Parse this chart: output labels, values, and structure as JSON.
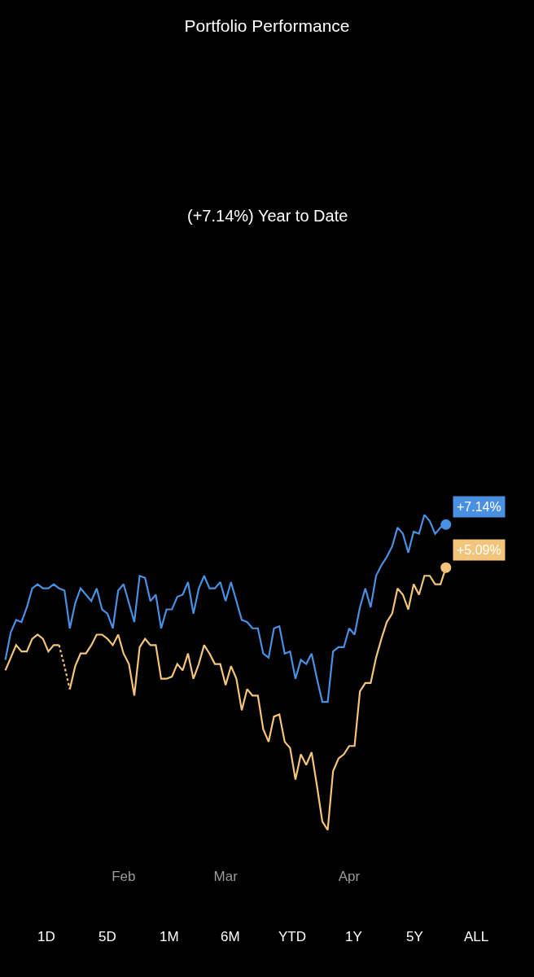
{
  "chart_data": {
    "type": "line",
    "title": "Portfolio Performance",
    "subtitle": "(+7.14%) Year to Date",
    "tick_labels": "x",
    "categories": [
      null,
      null,
      null,
      null,
      null,
      null,
      null,
      null,
      null,
      null,
      null,
      null,
      null,
      null,
      null,
      null,
      null,
      null,
      null,
      null,
      null,
      null,
      "Feb",
      null,
      null,
      null,
      null,
      null,
      null,
      null,
      null,
      null,
      null,
      null,
      null,
      null,
      null,
      null,
      null,
      null,
      null,
      "Mar",
      null,
      null,
      null,
      null,
      null,
      null,
      null,
      null,
      null,
      null,
      null,
      null,
      null,
      null,
      null,
      null,
      null,
      null,
      null,
      null,
      null,
      null,
      "Apr",
      null,
      null,
      null,
      null,
      null,
      null,
      null,
      null,
      null,
      null,
      null,
      null,
      null,
      null,
      null,
      null,
      null,
      null
    ],
    "grid": false,
    "marker": "none",
    "line_style": "solid",
    "series": [
      {
        "color": "#4a90e2",
        "values": [
          0.7,
          2.0,
          2.6,
          2.5,
          3.2,
          4.1,
          4.3,
          4.1,
          4.1,
          4.3,
          4.1,
          4.0,
          2.2,
          3.4,
          4.1,
          3.8,
          3.5,
          4.1,
          3.1,
          2.9,
          2.2,
          4.0,
          4.3,
          3.4,
          2.5,
          4.7,
          4.6,
          3.5,
          3.8,
          2.2,
          3.1,
          3.1,
          3.7,
          3.8,
          4.4,
          2.9,
          4.1,
          4.7,
          4.1,
          4.1,
          4.4,
          3.5,
          4.4,
          3.5,
          2.6,
          2.5,
          2.2,
          2.2,
          1.0,
          0.8,
          2.2,
          2.3,
          1.0,
          1.1,
          -0.2,
          0.7,
          0.5,
          1.0,
          -0.2,
          -1.3,
          -1.3,
          1.1,
          1.3,
          1.3,
          2.2,
          1.9,
          3.2,
          4.1,
          3.2,
          4.7,
          5.2,
          5.6,
          6.1,
          7.0,
          6.7,
          5.8,
          6.8,
          6.7,
          7.6,
          7.3,
          6.7,
          7.0,
          7.14
        ],
        "value_labels": [
          null,
          null,
          null,
          null,
          null,
          null,
          null,
          null,
          null,
          null,
          null,
          null,
          null,
          null,
          null,
          null,
          null,
          null,
          null,
          null,
          null,
          null,
          null,
          null,
          null,
          null,
          null,
          null,
          null,
          null,
          null,
          null,
          null,
          null,
          null,
          null,
          null,
          null,
          null,
          null,
          null,
          null,
          null,
          null,
          null,
          null,
          null,
          null,
          null,
          null,
          null,
          null,
          null,
          null,
          null,
          null,
          null,
          null,
          null,
          null,
          null,
          null,
          null,
          null,
          null,
          null,
          null,
          null,
          null,
          null,
          null,
          null,
          null,
          null,
          null,
          null,
          null,
          null,
          null,
          null,
          null,
          null,
          "+7.14%"
        ]
      },
      {
        "color": "#f3c57a",
        "values": [
          0.2,
          0.8,
          1.4,
          1.1,
          1.1,
          1.7,
          1.9,
          1.7,
          1.1,
          1.4,
          1.4,
          null,
          null,
          null,
          null,
          null,
          null,
          null,
          null,
          null,
          null,
          null,
          null,
          null,
          null,
          null,
          null,
          null,
          null,
          null,
          null,
          null,
          null,
          null,
          null,
          null,
          null,
          null,
          null,
          null,
          null,
          null,
          null,
          null,
          null,
          null,
          null,
          null,
          null,
          null,
          null,
          null,
          null,
          null,
          null,
          null,
          null,
          null,
          null,
          null,
          null,
          null,
          null,
          null,
          null,
          null,
          null,
          null,
          null,
          null,
          null,
          null,
          null,
          null,
          null,
          null,
          null,
          null,
          null,
          null,
          null,
          null,
          null
        ]
      },
      {
        "color": "#f3c57a",
        "line_style": "dotted",
        "values": [
          null,
          null,
          null,
          null,
          null,
          null,
          null,
          null,
          null,
          null,
          1.4,
          0.4,
          -0.7,
          null,
          null,
          null,
          null,
          null,
          null,
          null,
          null,
          null,
          null,
          null,
          null,
          null,
          null,
          null,
          null,
          null,
          null,
          null,
          null,
          null,
          null,
          null,
          null,
          null,
          null,
          null,
          null,
          null,
          null,
          null,
          null,
          null,
          null,
          null,
          null,
          null,
          null,
          null,
          null,
          null,
          null,
          null,
          null,
          null,
          null,
          null,
          null,
          null,
          null,
          null,
          null,
          null,
          null,
          null,
          null,
          null,
          null,
          null,
          null,
          null,
          null,
          null,
          null,
          null,
          null,
          null,
          null,
          null,
          null
        ]
      },
      {
        "color": "#f3c57a",
        "values": [
          null,
          null,
          null,
          null,
          null,
          null,
          null,
          null,
          null,
          null,
          null,
          null,
          -0.7,
          0.4,
          1.0,
          1.0,
          1.4,
          1.9,
          1.9,
          1.7,
          1.4,
          1.9,
          1.0,
          0.5,
          -1.0,
          1.3,
          1.7,
          1.4,
          1.4,
          -0.2,
          -0.2,
          -0.1,
          0.5,
          0.2,
          1.0,
          -0.2,
          0.5,
          1.4,
          1.0,
          0.5,
          0.5,
          -0.5,
          0.4,
          -0.2,
          -1.7,
          -0.7,
          -1.0,
          -1.0,
          -2.6,
          -3.2,
          -2.0,
          -1.9,
          -3.2,
          -3.5,
          -5.0,
          -3.8,
          -4.3,
          -3.7,
          -5.3,
          -7.0,
          -7.4,
          -4.6,
          -4.0,
          -3.8,
          -3.4,
          -3.4,
          -0.8,
          -0.4,
          -0.4,
          0.8,
          1.7,
          2.5,
          2.9,
          4.1,
          3.8,
          3.1,
          4.3,
          3.8,
          4.7,
          4.7,
          4.3,
          4.3,
          5.09
        ],
        "value_labels": [
          null,
          null,
          null,
          null,
          null,
          null,
          null,
          null,
          null,
          null,
          null,
          null,
          null,
          null,
          null,
          null,
          null,
          null,
          null,
          null,
          null,
          null,
          null,
          null,
          null,
          null,
          null,
          null,
          null,
          null,
          null,
          null,
          null,
          null,
          null,
          null,
          null,
          null,
          null,
          null,
          null,
          null,
          null,
          null,
          null,
          null,
          null,
          null,
          null,
          null,
          null,
          null,
          null,
          null,
          null,
          null,
          null,
          null,
          null,
          null,
          null,
          null,
          null,
          null,
          null,
          null,
          null,
          null,
          null,
          null,
          null,
          null,
          null,
          null,
          null,
          null,
          null,
          null,
          null,
          null,
          null,
          null,
          "+5.09%"
        ]
      }
    ],
    "annotations": [
      "1D",
      "5D",
      "1M",
      "6M",
      "YTD",
      "1Y",
      "5Y",
      "ALL"
    ]
  }
}
